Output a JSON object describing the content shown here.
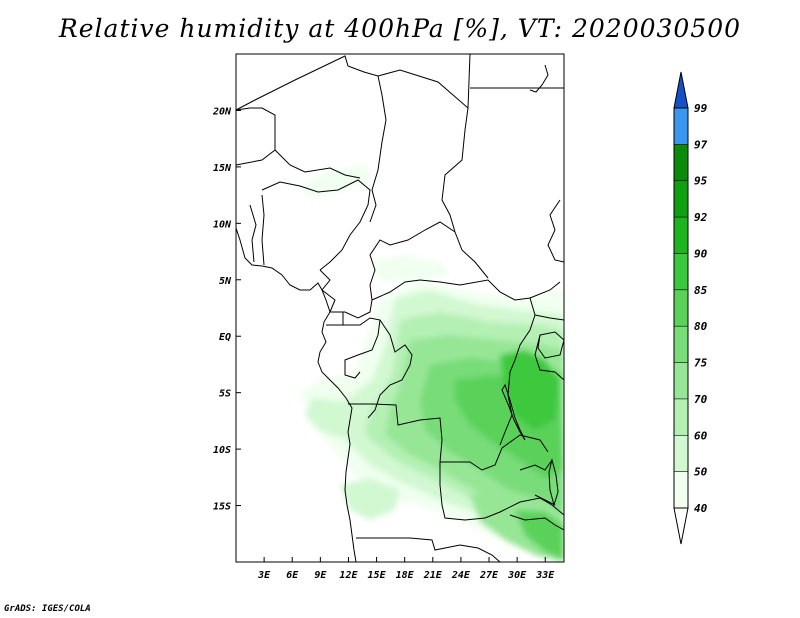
{
  "title": "Relative humidity at 400hPa [%], VT: 2020030500",
  "credit": "GrADS: IGES/COLA",
  "map": {
    "lon_range": [
      0,
      35
    ],
    "lat_range": [
      -20,
      25
    ],
    "lon_ticks": [
      {
        "value": 3,
        "label": "3E"
      },
      {
        "value": 6,
        "label": "6E"
      },
      {
        "value": 9,
        "label": "9E"
      },
      {
        "value": 12,
        "label": "12E"
      },
      {
        "value": 15,
        "label": "15E"
      },
      {
        "value": 18,
        "label": "18E"
      },
      {
        "value": 21,
        "label": "21E"
      },
      {
        "value": 24,
        "label": "24E"
      },
      {
        "value": 27,
        "label": "27E"
      },
      {
        "value": 30,
        "label": "30E"
      },
      {
        "value": 33,
        "label": "33E"
      }
    ],
    "lat_ticks": [
      {
        "value": 20,
        "label": "20N"
      },
      {
        "value": 15,
        "label": "15N"
      },
      {
        "value": 10,
        "label": "10N"
      },
      {
        "value": 5,
        "label": "5N"
      },
      {
        "value": 0,
        "label": "EQ"
      },
      {
        "value": -5,
        "label": "5S"
      },
      {
        "value": -10,
        "label": "10S"
      },
      {
        "value": -15,
        "label": "15S"
      }
    ]
  },
  "colorbar": {
    "levels": [
      {
        "label": "40",
        "color": "#f0fff0"
      },
      {
        "label": "50",
        "color": "#d2f8d2"
      },
      {
        "label": "60",
        "color": "#b4f0b4"
      },
      {
        "label": "70",
        "color": "#96e696"
      },
      {
        "label": "75",
        "color": "#78dc78"
      },
      {
        "label": "80",
        "color": "#5ad25a"
      },
      {
        "label": "85",
        "color": "#3cc83c"
      },
      {
        "label": "90",
        "color": "#1eb41e"
      },
      {
        "label": "92",
        "color": "#0fa00f"
      },
      {
        "label": "95",
        "color": "#0a8c0a"
      },
      {
        "label": "97",
        "color": "#3c96f0"
      },
      {
        "label": "99",
        "color": "#1e6ee6"
      }
    ],
    "top_color": "#1450c8",
    "bottom_color": "#ffffff"
  }
}
